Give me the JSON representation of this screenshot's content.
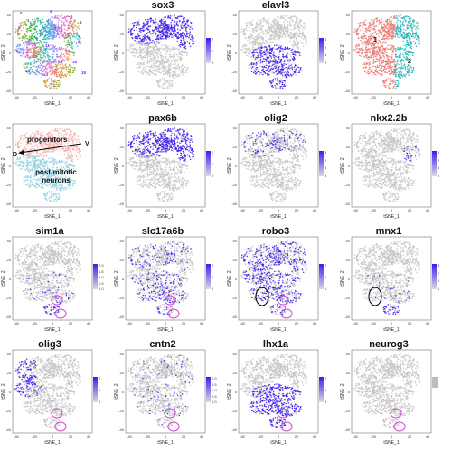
{
  "panels": [
    {
      "id": "clusters",
      "title": "",
      "kind": "clusters",
      "cluster_labels": [
        "0",
        "1",
        "2",
        "3",
        "4",
        "5",
        "6",
        "7",
        "8",
        "9",
        "10",
        "11",
        "12",
        "13",
        "14",
        "15",
        "16",
        "17",
        "18"
      ]
    },
    {
      "id": "sox3",
      "title": "sox3",
      "kind": "gene",
      "pattern": "top",
      "legend": [
        "2",
        "1",
        "0"
      ]
    },
    {
      "id": "elavl3",
      "title": "elavl3",
      "kind": "gene",
      "pattern": "bottom",
      "legend": [
        "3",
        "2",
        "1",
        "0"
      ]
    },
    {
      "id": "progenitor-split",
      "title": "",
      "kind": "split",
      "split_labels": [
        "1",
        "2"
      ]
    },
    {
      "id": "annotated",
      "title": "",
      "kind": "annotated",
      "annotations": {
        "progenitors": "progenitors",
        "post_mitotic": "post-mitotic\nneurons",
        "v": "V",
        "d": "D"
      }
    },
    {
      "id": "pax6b",
      "title": "pax6b",
      "kind": "gene",
      "pattern": "top",
      "legend": [
        "2",
        "1",
        "0"
      ]
    },
    {
      "id": "olig2",
      "title": "olig2",
      "kind": "gene",
      "pattern": "sparse_top",
      "legend": [
        "3",
        "2",
        "1",
        "0"
      ]
    },
    {
      "id": "nkx2.2b",
      "title": "nkx2.2b",
      "kind": "gene",
      "pattern": "tiny",
      "legend": [
        "3",
        "2",
        "1",
        "0"
      ]
    },
    {
      "id": "sim1a",
      "title": "sim1a",
      "kind": "gene",
      "pattern": "bottom_spots",
      "circles": "magenta",
      "legend": [
        "2.0",
        "1.5",
        "1.0",
        "0.5",
        "0.0"
      ]
    },
    {
      "id": "slc17a6b",
      "title": "slc17a6b",
      "kind": "gene",
      "pattern": "mixed",
      "circles": "magenta",
      "legend": [
        "2",
        "1",
        "0"
      ]
    },
    {
      "id": "robo3",
      "title": "robo3",
      "kind": "gene",
      "pattern": "mixed_dense",
      "circles": "magenta",
      "black_circle": true,
      "legend": [
        "2",
        "1",
        "0"
      ]
    },
    {
      "id": "mnx1",
      "title": "mnx1",
      "kind": "gene",
      "pattern": "bottom_spots",
      "circles": "none",
      "black_circle": true,
      "legend": [
        "3",
        "2",
        "1",
        "0"
      ]
    },
    {
      "id": "olig3",
      "title": "olig3",
      "kind": "gene",
      "pattern": "left",
      "circles": "magenta",
      "legend": [
        "2",
        "1",
        "0"
      ]
    },
    {
      "id": "cntn2",
      "title": "cntn2",
      "kind": "gene",
      "pattern": "sparse",
      "circles": "magenta",
      "legend": [
        "2.0",
        "1.5",
        "1.0",
        "0.5",
        "0.0"
      ]
    },
    {
      "id": "lhx1a",
      "title": "lhx1a",
      "kind": "gene",
      "pattern": "bottom",
      "circles": "magenta",
      "legend": [
        "2",
        "1",
        "0"
      ]
    },
    {
      "id": "neurog3",
      "title": "neurog3",
      "kind": "gene",
      "pattern": "none",
      "circles": "magenta",
      "legend_gray": true
    }
  ],
  "axes": {
    "xlabel": "tSNE_1",
    "ylabel": "tSNE_2",
    "xticks": [
      "-40",
      "-20",
      "0",
      "20",
      "40"
    ],
    "yticks": [
      "40",
      "20",
      "0",
      "-20",
      "-40"
    ]
  },
  "colors": {
    "gray": "#c4c4c4",
    "expr": "#3a1cf0",
    "circle_magenta": "#d04ad0",
    "circle_black": "#000000",
    "progenitor_red": "#ea7a74",
    "neuron_teal": "#1fb5b8",
    "arrow": "#000000"
  }
}
